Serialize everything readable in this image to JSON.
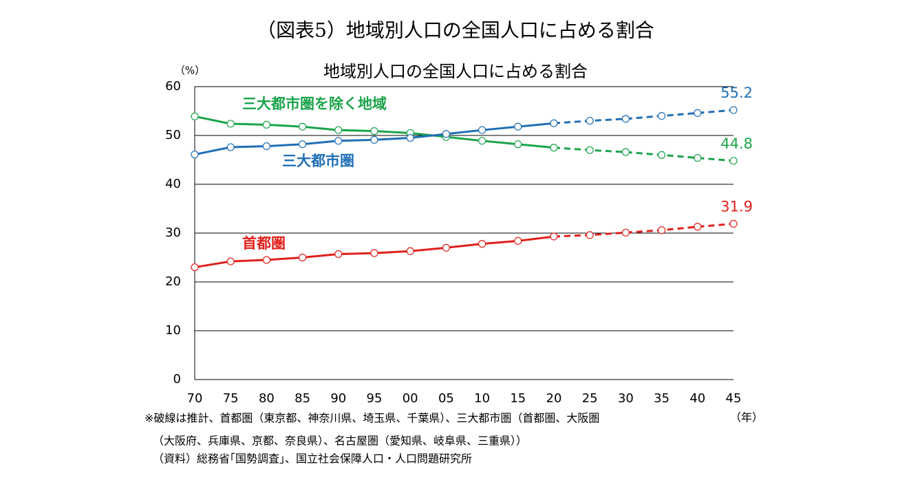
{
  "chart_data": {
    "type": "line",
    "figure_title": "（図表5）地域別人口の全国人口に占める割合",
    "title": "地域別人口の全国人口に占める割合",
    "y_unit": "（%）",
    "x_unit": "（年）",
    "categories": [
      "70",
      "75",
      "80",
      "85",
      "90",
      "95",
      "00",
      "05",
      "10",
      "15",
      "20",
      "25",
      "30",
      "35",
      "40",
      "45"
    ],
    "projection_from_index": 10,
    "end_labels": true,
    "series": [
      {
        "name": "三大都市圏を除く地域",
        "color": "#1aa34a",
        "values": [
          53.9,
          52.4,
          52.2,
          51.8,
          51.1,
          50.9,
          50.5,
          49.7,
          48.9,
          48.2,
          47.5,
          47.0,
          46.6,
          46.0,
          45.4,
          44.8
        ]
      },
      {
        "name": "三大都市圏",
        "color": "#1f6eb5",
        "values": [
          46.1,
          47.6,
          47.8,
          48.2,
          48.9,
          49.1,
          49.5,
          50.3,
          51.1,
          51.8,
          52.5,
          53.0,
          53.4,
          54.0,
          54.6,
          55.2
        ]
      },
      {
        "name": "首都圏",
        "color": "#e0201b",
        "values": [
          23.0,
          24.2,
          24.5,
          25.0,
          25.7,
          25.9,
          26.3,
          27.0,
          27.8,
          28.4,
          29.3,
          29.6,
          30.1,
          30.6,
          31.3,
          31.9
        ]
      }
    ],
    "ylim": [
      0,
      60
    ],
    "yticks": [
      0,
      10,
      20,
      30,
      40,
      50,
      60
    ],
    "grid": true,
    "notes": [
      "※破線は推計、首都圏（東京都、神奈川県、埼玉県、千葉県）、三大都市圏（首都圏、大阪圏",
      "（大阪府、兵庫県、京都、奈良県）、名古屋圏（愛知県、岐阜県、三重県））",
      "（資料）総務省｢国勢調査｣、国立社会保障人口・人口問題研究所"
    ]
  }
}
